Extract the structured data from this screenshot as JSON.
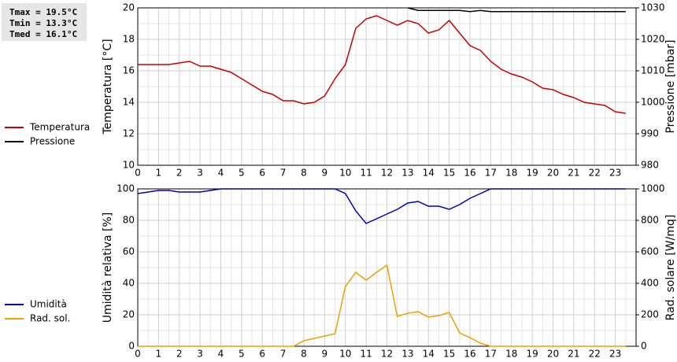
{
  "chart_data": [
    {
      "type": "line",
      "annotations": [
        "Tmax = 19.5°C",
        "Tmin = 13.3°C",
        "Tmed = 16.1°C"
      ],
      "ylabel": "Temperatura [°C]",
      "y2label": "Pressione [mbar]",
      "x": [
        0,
        0.5,
        1,
        1.5,
        2,
        2.5,
        3,
        3.5,
        4,
        4.5,
        5,
        5.5,
        6,
        6.5,
        7,
        7.5,
        8,
        8.5,
        9,
        9.5,
        10,
        10.5,
        11,
        11.5,
        12,
        12.5,
        13,
        13.5,
        14,
        14.5,
        15,
        15.5,
        16,
        16.5,
        17,
        17.5,
        18,
        18.5,
        19,
        19.5,
        20,
        20.5,
        21,
        21.5,
        22,
        22.5,
        23,
        23.5
      ],
      "xlim": [
        0,
        24
      ],
      "xticks": [
        0,
        1,
        2,
        3,
        4,
        5,
        6,
        7,
        8,
        9,
        10,
        11,
        12,
        13,
        14,
        15,
        16,
        17,
        18,
        19,
        20,
        21,
        22,
        23
      ],
      "ylim": [
        10,
        20
      ],
      "yticks": [
        10,
        12,
        14,
        16,
        18,
        20
      ],
      "y2lim": [
        980,
        1030
      ],
      "y2ticks": [
        980,
        990,
        1000,
        1010,
        1020,
        1030
      ],
      "grid": true,
      "series": [
        {
          "name": "Temperatura",
          "color": "#cc0000",
          "values": [
            16.4,
            16.4,
            16.4,
            16.4,
            16.5,
            16.6,
            16.3,
            16.3,
            16.1,
            15.9,
            15.5,
            15.1,
            14.7,
            14.5,
            14.1,
            14.1,
            13.9,
            14.0,
            14.4,
            15.5,
            16.4,
            18.7,
            19.3,
            19.5,
            19.2,
            18.9,
            19.2,
            19.0,
            18.4,
            18.6,
            19.2,
            18.4,
            17.6,
            17.3,
            16.6,
            16.1,
            15.8,
            15.6,
            15.3,
            14.9,
            14.8,
            14.5,
            14.3,
            14.0,
            13.9,
            13.8,
            13.4,
            13.3
          ]
        },
        {
          "name": "Pressione",
          "color": "#000000",
          "axis": "y2",
          "values": [
            null,
            null,
            null,
            null,
            null,
            null,
            null,
            null,
            null,
            null,
            null,
            null,
            null,
            null,
            null,
            null,
            null,
            null,
            null,
            null,
            null,
            null,
            null,
            null,
            null,
            null,
            1030,
            1029.2,
            1029.2,
            1029.2,
            1029.2,
            1029.2,
            1028.8,
            1029.2,
            1028.8,
            1028.8,
            1028.8,
            1028.8,
            1028.8,
            1028.8,
            1028.8,
            1028.8,
            1028.8,
            1028.8,
            1028.8,
            1028.8,
            1028.8,
            1028.8
          ]
        }
      ]
    },
    {
      "type": "line",
      "ylabel": "Umidità relativa [%]",
      "y2label": "Rad. solare [W/mq]",
      "x": [
        0,
        0.5,
        1,
        1.5,
        2,
        2.5,
        3,
        3.5,
        4,
        4.5,
        5,
        5.5,
        6,
        6.5,
        7,
        7.5,
        8,
        8.5,
        9,
        9.5,
        10,
        10.5,
        11,
        11.5,
        12,
        12.5,
        13,
        13.5,
        14,
        14.5,
        15,
        15.5,
        16,
        16.5,
        17,
        17.5,
        18,
        18.5,
        19,
        19.5,
        20,
        20.5,
        21,
        21.5,
        22,
        22.5,
        23,
        23.5
      ],
      "xlim": [
        0,
        24
      ],
      "xticks": [
        0,
        1,
        2,
        3,
        4,
        5,
        6,
        7,
        8,
        9,
        10,
        11,
        12,
        13,
        14,
        15,
        16,
        17,
        18,
        19,
        20,
        21,
        22,
        23
      ],
      "ylim": [
        0,
        100
      ],
      "yticks": [
        0,
        20,
        40,
        60,
        80,
        100
      ],
      "y2lim": [
        0,
        1000
      ],
      "y2ticks": [
        0,
        200,
        400,
        600,
        800,
        1000
      ],
      "grid": true,
      "series": [
        {
          "name": "Umidità",
          "color": "#0000bb",
          "values": [
            97,
            98,
            99,
            99,
            98,
            98,
            98,
            99,
            100,
            100,
            100,
            100,
            100,
            100,
            100,
            100,
            100,
            100,
            100,
            100,
            97,
            86,
            78,
            81,
            84,
            87,
            91,
            92,
            89,
            89,
            87,
            90,
            94,
            97,
            100,
            100,
            100,
            100,
            100,
            100,
            100,
            100,
            100,
            100,
            100,
            100,
            100,
            100
          ]
        },
        {
          "name": "Rad. sol.",
          "color": "#f0a000",
          "axis": "y2",
          "values": [
            0,
            0,
            0,
            0,
            0,
            0,
            0,
            0,
            0,
            0,
            0,
            0,
            0,
            0,
            0,
            0,
            35,
            50,
            65,
            80,
            380,
            470,
            420,
            470,
            515,
            190,
            210,
            220,
            185,
            195,
            215,
            85,
            55,
            20,
            0,
            0,
            0,
            0,
            0,
            0,
            0,
            0,
            0,
            0,
            0,
            0,
            0,
            0
          ]
        }
      ]
    }
  ]
}
